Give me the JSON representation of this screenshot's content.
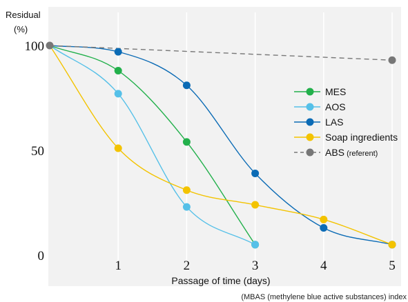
{
  "chart_data": {
    "type": "line",
    "ylabel": "Residual",
    "ylabel_unit": "(%)",
    "xlabel": "Passage of time (days)",
    "footnote": "(MBAS (methylene blue active substances) index",
    "xlim": [
      0,
      5
    ],
    "ylim": [
      0,
      100
    ],
    "x_ticks": [
      1,
      2,
      3,
      4,
      5
    ],
    "y_ticks": [
      0,
      50,
      100
    ],
    "grid": "vertical",
    "legend_position": "right",
    "series": [
      {
        "name": "MES",
        "color": "#22b04b",
        "style": "solid",
        "points": [
          [
            0,
            100
          ],
          [
            1,
            88
          ],
          [
            2,
            54
          ],
          [
            3,
            5
          ]
        ]
      },
      {
        "name": "AOS",
        "color": "#55c0e8",
        "style": "solid",
        "points": [
          [
            0,
            100
          ],
          [
            1,
            77
          ],
          [
            2,
            23
          ],
          [
            3,
            5
          ]
        ]
      },
      {
        "name": "LAS",
        "color": "#0b6bb5",
        "style": "solid",
        "points": [
          [
            0,
            100
          ],
          [
            1,
            97
          ],
          [
            2,
            81
          ],
          [
            3,
            39
          ],
          [
            4,
            13
          ],
          [
            5,
            5
          ]
        ]
      },
      {
        "name": "Soap ingredients",
        "color": "#f3c300",
        "style": "solid",
        "points": [
          [
            0,
            100
          ],
          [
            1,
            51
          ],
          [
            2,
            31
          ],
          [
            3,
            24
          ],
          [
            4,
            17
          ],
          [
            5,
            5
          ]
        ]
      },
      {
        "name": "ABS",
        "name_note": "(referent)",
        "color": "#777777",
        "style": "dashed",
        "points": [
          [
            0,
            100
          ],
          [
            5,
            93
          ]
        ]
      }
    ]
  }
}
